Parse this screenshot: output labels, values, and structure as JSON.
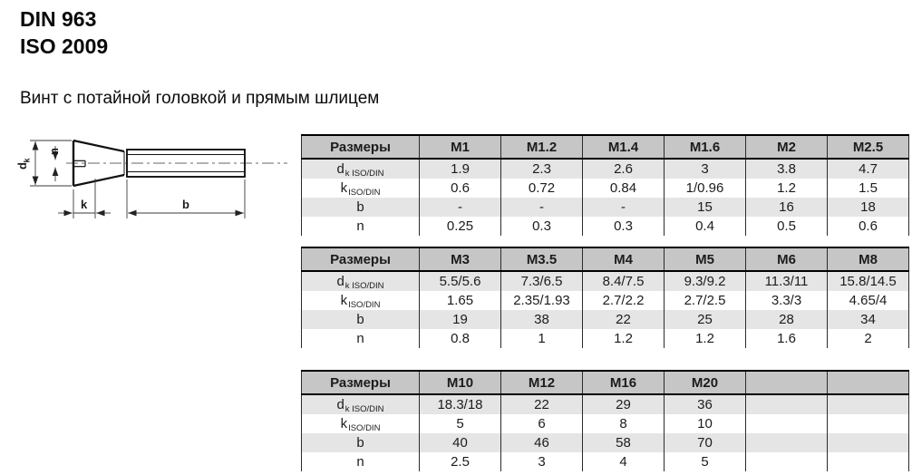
{
  "page": {
    "title_line1": "DIN 963",
    "title_line2": "ISO 2009",
    "subtitle": "Винт с потайной головкой и прямым шлицем"
  },
  "drawing": {
    "labels": {
      "d_main": "d",
      "d_sub": "k",
      "n": "n",
      "k": "k",
      "b": "b"
    }
  },
  "colors": {
    "header_bg": "#c6c6c6",
    "row_alt_bg": "#e5e5e5",
    "border": "#000000"
  },
  "tables": [
    {
      "header": [
        "Размеры",
        "M1",
        "M1.2",
        "M1.4",
        "M1.6",
        "M2",
        "M2.5"
      ],
      "rows": [
        {
          "label_main": "d",
          "label_sub": "k ISO/DIN",
          "values": [
            "1.9",
            "2.3",
            "2.6",
            "3",
            "3.8",
            "4.7"
          ]
        },
        {
          "label_main": "k",
          "label_sub": "ISO/DIN",
          "values": [
            "0.6",
            "0.72",
            "0.84",
            "1/0.96",
            "1.2",
            "1.5"
          ]
        },
        {
          "label_main": "b",
          "label_sub": "",
          "values": [
            "-",
            "-",
            "-",
            "15",
            "16",
            "18"
          ]
        },
        {
          "label_main": "n",
          "label_sub": "",
          "values": [
            "0.25",
            "0.3",
            "0.3",
            "0.4",
            "0.5",
            "0.6"
          ]
        }
      ]
    },
    {
      "header": [
        "Размеры",
        "M3",
        "M3.5",
        "M4",
        "M5",
        "M6",
        "M8"
      ],
      "rows": [
        {
          "label_main": "d",
          "label_sub": "k ISO/DIN",
          "values": [
            "5.5/5.6",
            "7.3/6.5",
            "8.4/7.5",
            "9.3/9.2",
            "11.3/11",
            "15.8/14.5"
          ]
        },
        {
          "label_main": "k",
          "label_sub": "ISO/DIN",
          "values": [
            "1.65",
            "2.35/1.93",
            "2.7/2.2",
            "2.7/2.5",
            "3.3/3",
            "4.65/4"
          ]
        },
        {
          "label_main": "b",
          "label_sub": "",
          "values": [
            "19",
            "38",
            "22",
            "25",
            "28",
            "34"
          ]
        },
        {
          "label_main": "n",
          "label_sub": "",
          "values": [
            "0.8",
            "1",
            "1.2",
            "1.2",
            "1.6",
            "2"
          ]
        }
      ]
    },
    {
      "header": [
        "Размеры",
        "M10",
        "M12",
        "M16",
        "M20",
        "",
        ""
      ],
      "rows": [
        {
          "label_main": "d",
          "label_sub": "k ISO/DIN",
          "values": [
            "18.3/18",
            "22",
            "29",
            "36",
            "",
            ""
          ]
        },
        {
          "label_main": "k",
          "label_sub": "ISO/DIN",
          "values": [
            "5",
            "6",
            "8",
            "10",
            "",
            ""
          ]
        },
        {
          "label_main": "b",
          "label_sub": "",
          "values": [
            "40",
            "46",
            "58",
            "70",
            "",
            ""
          ]
        },
        {
          "label_main": "n",
          "label_sub": "",
          "values": [
            "2.5",
            "3",
            "4",
            "5",
            "",
            ""
          ]
        }
      ]
    }
  ]
}
